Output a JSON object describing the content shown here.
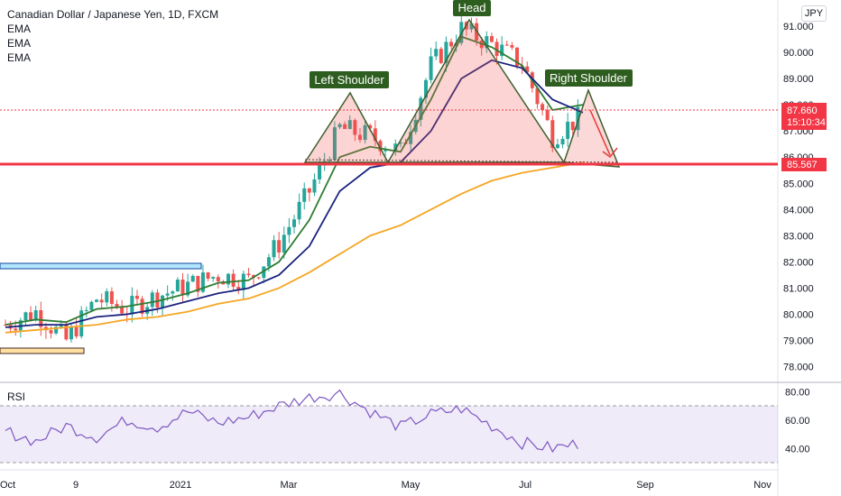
{
  "header": {
    "title": "Canadian Dollar / Japanese Yen, 1D, FXCM",
    "indicators": [
      "EMA",
      "EMA",
      "EMA"
    ],
    "currency": "JPY"
  },
  "price_tag": {
    "value": "87.660",
    "countdown": "15:10:34",
    "color": "#f23645"
  },
  "support_tag": {
    "value": "85.567",
    "color": "#f23645"
  },
  "rsi": {
    "title": "RSI",
    "ticks": [
      "80.00",
      "60.00",
      "40.00"
    ]
  },
  "chart_data": {
    "type": "line",
    "pair": "CADJPY",
    "timeframe": "1D",
    "ylim": [
      77.4,
      92.0
    ],
    "y_ticks": [
      "78.000",
      "79.000",
      "80.000",
      "81.000",
      "82.000",
      "83.000",
      "84.000",
      "85.000",
      "86.000",
      "87.000",
      "88.000",
      "89.000",
      "90.000",
      "91.000"
    ],
    "x_ticks": [
      "Oct",
      "9",
      "2021",
      "Mar",
      "May",
      "Jul",
      "Sep",
      "Nov"
    ],
    "x_ticks_fmt_note": "",
    "series": [
      {
        "type": "candles-approx",
        "color_up": "#26a69a",
        "color_down": "#ef5350",
        "x": [
          "2020-10-01",
          "2020-10-15",
          "2020-11-01",
          "2020-11-15",
          "2020-12-01",
          "2020-12-15",
          "2021-01-01",
          "2021-01-15",
          "2021-02-01",
          "2021-02-15",
          "2021-03-01",
          "2021-03-15",
          "2021-04-01",
          "2021-04-15",
          "2021-05-01",
          "2021-05-15",
          "2021-06-01",
          "2021-06-15",
          "2021-07-01",
          "2021-07-15"
        ],
        "values": [
          79.6,
          80.1,
          79.0,
          80.6,
          80.2,
          80.7,
          81.1,
          81.5,
          81.3,
          82.7,
          84.7,
          87.1,
          86.8,
          86.2,
          89.5,
          90.9,
          90.3,
          89.6,
          86.8,
          87.6
        ]
      },
      {
        "color": "#2e7d32",
        "values": [
          79.6,
          79.8,
          79.7,
          80.2,
          80.3,
          80.5,
          80.8,
          81.2,
          81.3,
          82.0,
          83.6,
          86.0,
          86.4,
          86.2,
          88.2,
          90.6,
          90.2,
          89.5,
          87.8,
          88.0
        ]
      },
      {
        "color": "#1a237e",
        "values": [
          79.5,
          79.6,
          79.6,
          79.9,
          80.0,
          80.2,
          80.5,
          80.8,
          81.0,
          81.5,
          82.6,
          84.7,
          85.6,
          85.8,
          87.0,
          89.0,
          89.7,
          89.4,
          88.2,
          87.7
        ]
      },
      {
        "color": "#f5a623",
        "values": [
          79.3,
          79.4,
          79.5,
          79.6,
          79.8,
          79.9,
          80.1,
          80.4,
          80.6,
          81.0,
          81.6,
          82.3,
          83.0,
          83.4,
          84.0,
          84.6,
          85.1,
          85.4,
          85.6,
          85.8
        ]
      }
    ],
    "rsi_values": [
      52,
      45,
      56,
      48,
      60,
      55,
      66,
      58,
      62,
      70,
      76,
      79,
      66,
      55,
      64,
      68,
      56,
      44,
      40,
      44
    ],
    "annotations": [
      "Left Shoulder",
      "Head",
      "Right Shoulder"
    ],
    "support_level": 85.567,
    "pattern": "head-and-shoulders"
  }
}
